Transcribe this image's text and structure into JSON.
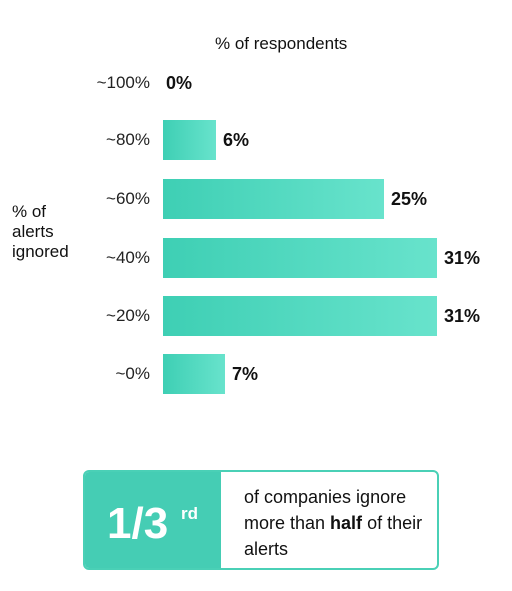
{
  "chart_data": {
    "type": "bar",
    "orientation": "horizontal",
    "title": "% of respondents",
    "ylabel_lines": [
      "% of",
      "alerts",
      "ignored"
    ],
    "categories": [
      "~100%",
      "~80%",
      "~60%",
      "~40%",
      "~20%",
      "~0%"
    ],
    "values": [
      0,
      6,
      25,
      31,
      31,
      7
    ],
    "value_labels": [
      "0%",
      "6%",
      "25%",
      "31%",
      "31%",
      "7%"
    ],
    "xlim": [
      0,
      31
    ],
    "grid": false,
    "bar_color": "#45cdb4"
  },
  "callout": {
    "fraction": "1/3",
    "superscript": "rd",
    "text_part1": "of companies ignore more than ",
    "text_bold": "half",
    "text_part2": " of their alerts",
    "color": "#45cdb4"
  }
}
